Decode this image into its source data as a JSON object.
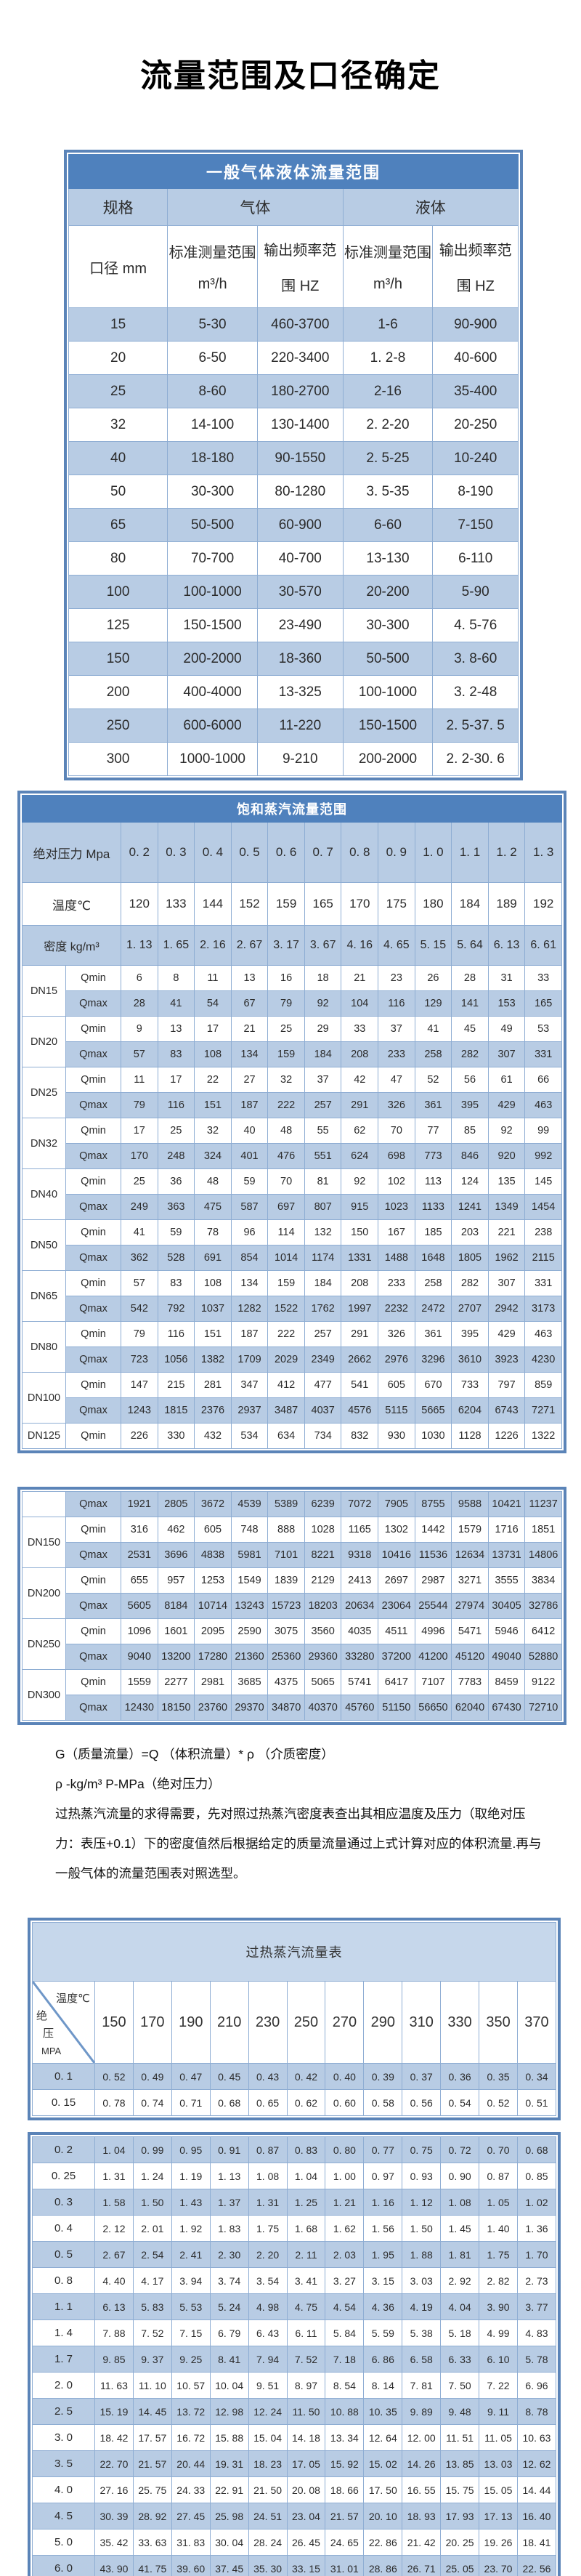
{
  "page_title": "流量范围及口径确定",
  "colors": {
    "header_blue": "#4f81bd",
    "row_blue": "#b8cce4",
    "light_blue": "#c6d7eb",
    "grid_line": "#8eadd3",
    "frame_border": "#5b84b8"
  },
  "gas_liquid_table": {
    "title": "一般气体液体流量范围",
    "header": {
      "spec": "规格",
      "gas": "气体",
      "liquid": "液体",
      "diameter": "口径 mm",
      "std_range_line1": "标准测量范围",
      "std_range_line2": "m³/h",
      "freq_range_line1": "输出频率范",
      "freq_range_line2": "围 HZ"
    },
    "rows": [
      [
        "15",
        "5-30",
        "460-3700",
        "1-6",
        "90-900"
      ],
      [
        "20",
        "6-50",
        "220-3400",
        "1. 2-8",
        "40-600"
      ],
      [
        "25",
        "8-60",
        "180-2700",
        "2-16",
        "35-400"
      ],
      [
        "32",
        "14-100",
        "130-1400",
        "2. 2-20",
        "20-250"
      ],
      [
        "40",
        "18-180",
        "90-1550",
        "2. 5-25",
        "10-240"
      ],
      [
        "50",
        "30-300",
        "80-1280",
        "3. 5-35",
        "8-190"
      ],
      [
        "65",
        "50-500",
        "60-900",
        "6-60",
        "7-150"
      ],
      [
        "80",
        "70-700",
        "40-700",
        "13-130",
        "6-110"
      ],
      [
        "100",
        "100-1000",
        "30-570",
        "20-200",
        "5-90"
      ],
      [
        "125",
        "150-1500",
        "23-490",
        "30-300",
        "4. 5-76"
      ],
      [
        "150",
        "200-2000",
        "18-360",
        "50-500",
        "3. 8-60"
      ],
      [
        "200",
        "400-4000",
        "13-325",
        "100-1000",
        "3. 2-48"
      ],
      [
        "250",
        "600-6000",
        "11-220",
        "150-1500",
        "2. 5-37. 5"
      ],
      [
        "300",
        "1000-1000",
        "9-210",
        "200-2000",
        "2. 2-30. 6"
      ]
    ]
  },
  "saturated_table": {
    "title": "饱和蒸汽流量范围",
    "pressure_label": "绝对压力 Mpa",
    "pressures": [
      "0. 2",
      "0. 3",
      "0. 4",
      "0. 5",
      "0. 6",
      "0. 7",
      "0. 8",
      "0. 9",
      "1. 0",
      "1. 1",
      "1. 2",
      "1. 3"
    ],
    "temp_label": "温度℃",
    "temps": [
      "120",
      "133",
      "144",
      "152",
      "159",
      "165",
      "170",
      "175",
      "180",
      "184",
      "189",
      "192"
    ],
    "density_label": "密度 kg/m³",
    "densities": [
      "1. 13",
      "1. 65",
      "2. 16",
      "2. 67",
      "3. 17",
      "3. 67",
      "4. 16",
      "4. 65",
      "5. 15",
      "5. 64",
      "6. 13",
      "6. 61"
    ],
    "qmin_label": "Qmin",
    "qmax_label": "Qmax",
    "box1_groups": [
      {
        "dn": "DN15",
        "qmin": [
          "6",
          "8",
          "11",
          "13",
          "16",
          "18",
          "21",
          "23",
          "26",
          "28",
          "31",
          "33"
        ],
        "qmax": [
          "28",
          "41",
          "54",
          "67",
          "79",
          "92",
          "104",
          "116",
          "129",
          "141",
          "153",
          "165"
        ]
      },
      {
        "dn": "DN20",
        "qmin": [
          "9",
          "13",
          "17",
          "21",
          "25",
          "29",
          "33",
          "37",
          "41",
          "45",
          "49",
          "53"
        ],
        "qmax": [
          "57",
          "83",
          "108",
          "134",
          "159",
          "184",
          "208",
          "233",
          "258",
          "282",
          "307",
          "331"
        ]
      },
      {
        "dn": "DN25",
        "qmin": [
          "11",
          "17",
          "22",
          "27",
          "32",
          "37",
          "42",
          "47",
          "52",
          "56",
          "61",
          "66"
        ],
        "qmax": [
          "79",
          "116",
          "151",
          "187",
          "222",
          "257",
          "291",
          "326",
          "361",
          "395",
          "429",
          "463"
        ]
      },
      {
        "dn": "DN32",
        "qmin": [
          "17",
          "25",
          "32",
          "40",
          "48",
          "55",
          "62",
          "70",
          "77",
          "85",
          "92",
          "99"
        ],
        "qmax": [
          "170",
          "248",
          "324",
          "401",
          "476",
          "551",
          "624",
          "698",
          "773",
          "846",
          "920",
          "992"
        ]
      },
      {
        "dn": "DN40",
        "qmin": [
          "25",
          "36",
          "48",
          "59",
          "70",
          "81",
          "92",
          "102",
          "113",
          "124",
          "135",
          "145"
        ],
        "qmax": [
          "249",
          "363",
          "475",
          "587",
          "697",
          "807",
          "915",
          "1023",
          "1133",
          "1241",
          "1349",
          "1454"
        ]
      },
      {
        "dn": "DN50",
        "qmin": [
          "41",
          "59",
          "78",
          "96",
          "114",
          "132",
          "150",
          "167",
          "185",
          "203",
          "221",
          "238"
        ],
        "qmax": [
          "362",
          "528",
          "691",
          "854",
          "1014",
          "1174",
          "1331",
          "1488",
          "1648",
          "1805",
          "1962",
          "2115"
        ]
      },
      {
        "dn": "DN65",
        "qmin": [
          "57",
          "83",
          "108",
          "134",
          "159",
          "184",
          "208",
          "233",
          "258",
          "282",
          "307",
          "331"
        ],
        "qmax": [
          "542",
          "792",
          "1037",
          "1282",
          "1522",
          "1762",
          "1997",
          "2232",
          "2472",
          "2707",
          "2942",
          "3173"
        ]
      },
      {
        "dn": "DN80",
        "qmin": [
          "79",
          "116",
          "151",
          "187",
          "222",
          "257",
          "291",
          "326",
          "361",
          "395",
          "429",
          "463"
        ],
        "qmax": [
          "723",
          "1056",
          "1382",
          "1709",
          "2029",
          "2349",
          "2662",
          "2976",
          "3296",
          "3610",
          "3923",
          "4230"
        ]
      },
      {
        "dn": "DN100",
        "qmin": [
          "147",
          "215",
          "281",
          "347",
          "412",
          "477",
          "541",
          "605",
          "670",
          "733",
          "797",
          "859"
        ],
        "qmax": [
          "1243",
          "1815",
          "2376",
          "2937",
          "3487",
          "4037",
          "4576",
          "5115",
          "5665",
          "6204",
          "6743",
          "7271"
        ]
      },
      {
        "dn": "DN125",
        "qmin": [
          "226",
          "330",
          "432",
          "534",
          "634",
          "734",
          "832",
          "930",
          "1030",
          "1128",
          "1226",
          "1322"
        ]
      }
    ],
    "box2_orphan_qmax": [
      "1921",
      "2805",
      "3672",
      "4539",
      "5389",
      "6239",
      "7072",
      "7905",
      "8755",
      "9588",
      "10421",
      "11237"
    ],
    "box2_groups": [
      {
        "dn": "DN150",
        "qmin": [
          "316",
          "462",
          "605",
          "748",
          "888",
          "1028",
          "1165",
          "1302",
          "1442",
          "1579",
          "1716",
          "1851"
        ],
        "qmax": [
          "2531",
          "3696",
          "4838",
          "5981",
          "7101",
          "8221",
          "9318",
          "10416",
          "11536",
          "12634",
          "13731",
          "14806"
        ]
      },
      {
        "dn": "DN200",
        "qmin": [
          "655",
          "957",
          "1253",
          "1549",
          "1839",
          "2129",
          "2413",
          "2697",
          "2987",
          "3271",
          "3555",
          "3834"
        ],
        "qmax": [
          "5605",
          "8184",
          "10714",
          "13243",
          "15723",
          "18203",
          "20634",
          "23064",
          "25544",
          "27974",
          "30405",
          "32786"
        ]
      },
      {
        "dn": "DN250",
        "qmin": [
          "1096",
          "1601",
          "2095",
          "2590",
          "3075",
          "3560",
          "4035",
          "4511",
          "4996",
          "5471",
          "5946",
          "6412"
        ],
        "qmax": [
          "9040",
          "13200",
          "17280",
          "21360",
          "25360",
          "29360",
          "33280",
          "37200",
          "41200",
          "45120",
          "49040",
          "52880"
        ]
      },
      {
        "dn": "DN300",
        "qmin": [
          "1559",
          "2277",
          "2981",
          "3685",
          "4375",
          "5065",
          "5741",
          "6417",
          "7107",
          "7783",
          "8459",
          "9122"
        ],
        "qmax": [
          "12430",
          "18150",
          "23760",
          "29370",
          "34870",
          "40370",
          "45760",
          "51150",
          "56650",
          "62040",
          "67430",
          "72710"
        ]
      }
    ]
  },
  "notes": {
    "formula": "G（质量流量）=Q （体积流量）* ρ （介质密度）",
    "units": "ρ -kg/m³ P-MPa（绝对压力）",
    "paragraph": "过热蒸汽流量的求得需要，先对照过热蒸汽密度表查出其相应温度及压力（取绝对压力：表压+0.1）下的密度值然后根据给定的质量流量通过上式计算对应的体积流量.再与一般气体的流量范围表对照选型。"
  },
  "superheated_table": {
    "title": "过热蒸汽流量表",
    "corner_top": "温度℃",
    "corner_left1": "绝",
    "corner_left2": "压",
    "corner_left3": "MPA",
    "temps": [
      "150",
      "170",
      "190",
      "210",
      "230",
      "250",
      "270",
      "290",
      "310",
      "330",
      "350",
      "370"
    ],
    "box1_rows": [
      {
        "p": "0. 1",
        "v": [
          "0. 52",
          "0. 49",
          "0. 47",
          "0. 45",
          "0. 43",
          "0. 42",
          "0. 40",
          "0. 39",
          "0. 37",
          "0. 36",
          "0. 35",
          "0. 34"
        ]
      },
      {
        "p": "0. 15",
        "v": [
          "0. 78",
          "0. 74",
          "0. 71",
          "0. 68",
          "0. 65",
          "0. 62",
          "0. 60",
          "0. 58",
          "0. 56",
          "0. 54",
          "0. 52",
          "0. 51"
        ]
      }
    ],
    "box2_rows": [
      {
        "p": "0. 2",
        "v": [
          "1. 04",
          "0. 99",
          "0. 95",
          "0. 91",
          "0. 87",
          "0. 83",
          "0. 80",
          "0. 77",
          "0. 75",
          "0. 72",
          "0. 70",
          "0. 68"
        ]
      },
      {
        "p": "0. 25",
        "v": [
          "1. 31",
          "1. 24",
          "1. 19",
          "1. 13",
          "1. 08",
          "1. 04",
          "1. 00",
          "0. 97",
          "0. 93",
          "0. 90",
          "0. 87",
          "0. 85"
        ]
      },
      {
        "p": "0. 3",
        "v": [
          "1. 58",
          "1. 50",
          "1. 43",
          "1. 37",
          "1. 31",
          "1. 25",
          "1. 21",
          "1. 16",
          "1. 12",
          "1. 08",
          "1. 05",
          "1. 02"
        ]
      },
      {
        "p": "0. 4",
        "v": [
          "2. 12",
          "2. 01",
          "1. 92",
          "1. 83",
          "1. 75",
          "1. 68",
          "1. 62",
          "1. 56",
          "1. 50",
          "1. 45",
          "1. 40",
          "1. 36"
        ]
      },
      {
        "p": "0. 5",
        "v": [
          "2. 67",
          "2. 54",
          "2. 41",
          "2. 30",
          "2. 20",
          "2. 11",
          "2. 03",
          "1. 95",
          "1. 88",
          "1. 81",
          "1. 75",
          "1. 70"
        ]
      },
      {
        "p": "0. 8",
        "v": [
          "4. 40",
          "4. 17",
          "3. 94",
          "3. 74",
          "3. 54",
          "3. 41",
          "3. 27",
          "3. 15",
          "3. 03",
          "2. 92",
          "2. 82",
          "2. 73"
        ]
      },
      {
        "p": "1. 1",
        "v": [
          "6. 13",
          "5. 83",
          "5. 53",
          "5. 24",
          "4. 98",
          "4. 75",
          "4. 54",
          "4. 36",
          "4. 19",
          "4. 04",
          "3. 90",
          "3. 77"
        ]
      },
      {
        "p": "1. 4",
        "v": [
          "7. 88",
          "7. 52",
          "7. 15",
          "6. 79",
          "6. 43",
          "6. 11",
          "5. 84",
          "5. 59",
          "5. 38",
          "5. 18",
          "4. 99",
          "4. 83"
        ]
      },
      {
        "p": "1. 7",
        "v": [
          "9. 85",
          "9. 37",
          "9. 25",
          "8. 41",
          "7. 94",
          "7. 52",
          "7. 18",
          "6. 86",
          "6. 58",
          "6. 33",
          "6. 10",
          "5. 78"
        ]
      },
      {
        "p": "2. 0",
        "v": [
          "11. 63",
          "11. 10",
          "10. 57",
          "10. 04",
          "9. 51",
          "8. 97",
          "8. 54",
          "8. 14",
          "7. 81",
          "7. 50",
          "7. 22",
          "6. 96"
        ]
      },
      {
        "p": "2. 5",
        "v": [
          "15. 19",
          "14. 45",
          "13. 72",
          "12. 98",
          "12. 24",
          "11. 50",
          "10. 88",
          "10. 35",
          "9. 89",
          "9. 48",
          "9. 11",
          "8. 78"
        ]
      },
      {
        "p": "3. 0",
        "v": [
          "18. 42",
          "17. 57",
          "16. 72",
          "15. 88",
          "15. 04",
          "14. 18",
          "13. 34",
          "12. 64",
          "12. 00",
          "11. 51",
          "11. 05",
          "10. 63"
        ]
      },
      {
        "p": "3. 5",
        "v": [
          "22. 70",
          "21. 57",
          "20. 44",
          "19. 31",
          "18. 23",
          "17. 05",
          "15. 92",
          "15. 02",
          "14. 26",
          "13. 85",
          "13. 03",
          "12. 62"
        ]
      },
      {
        "p": "4. 0",
        "v": [
          "27. 16",
          "25. 75",
          "24. 33",
          "22. 91",
          "21. 50",
          "20. 08",
          "18. 66",
          "17. 50",
          "16. 55",
          "15. 75",
          "15. 05",
          "14. 44"
        ]
      },
      {
        "p": "4. 5",
        "v": [
          "30. 39",
          "28. 92",
          "27. 45",
          "25. 98",
          "24. 51",
          "23. 04",
          "21. 57",
          "20. 10",
          "18. 93",
          "17. 93",
          "17. 13",
          "16. 40"
        ]
      },
      {
        "p": "5. 0",
        "v": [
          "35. 42",
          "33. 63",
          "31. 83",
          "30. 04",
          "28. 24",
          "26. 45",
          "24. 65",
          "22. 86",
          "21. 42",
          "20. 25",
          "19. 26",
          "18. 41"
        ]
      },
      {
        "p": "6. 0",
        "v": [
          "43. 90",
          "41. 75",
          "39. 60",
          "37. 45",
          "35. 30",
          "33. 15",
          "31. 01",
          "28. 86",
          "26. 71",
          "25. 05",
          "23. 70",
          "22. 56"
        ]
      }
    ]
  }
}
